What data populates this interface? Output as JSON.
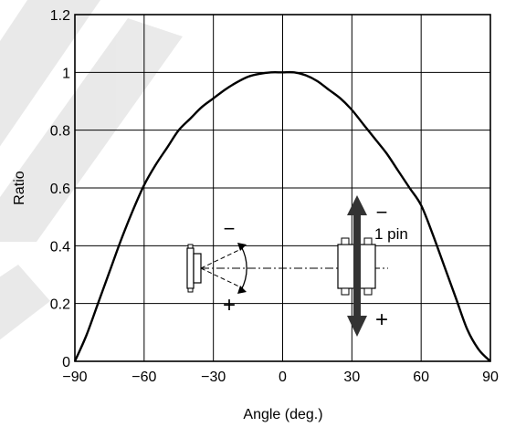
{
  "chart_data": {
    "type": "line",
    "xlabel": "Angle  (deg.)",
    "ylabel": "Ratio",
    "xlim": [
      -90,
      90
    ],
    "ylim": [
      0,
      1.2
    ],
    "x_ticks": [
      "−90",
      "−60",
      "−30",
      "0",
      "30",
      "60",
      "90"
    ],
    "x_tick_values": [
      -90,
      -60,
      -30,
      0,
      30,
      60,
      90
    ],
    "y_ticks": [
      "0",
      "0.2",
      "0.4",
      "0.6",
      "0.8",
      "1",
      "1.2"
    ],
    "y_tick_values": [
      0,
      0.2,
      0.4,
      0.6,
      0.8,
      1,
      1.2
    ],
    "grid": true,
    "series": [
      {
        "x": [
          -90,
          -85,
          -80,
          -75,
          -70,
          -65,
          -60,
          -55,
          -50,
          -45,
          -40,
          -35,
          -30,
          -25,
          -20,
          -15,
          -10,
          -5,
          0,
          5,
          10,
          15,
          20,
          25,
          30,
          35,
          40,
          45,
          50,
          55,
          60,
          65,
          70,
          75,
          80,
          85,
          90
        ],
        "y": [
          0.0,
          0.09,
          0.2,
          0.31,
          0.42,
          0.52,
          0.61,
          0.68,
          0.74,
          0.8,
          0.84,
          0.88,
          0.91,
          0.94,
          0.965,
          0.985,
          0.995,
          1.0,
          1.0,
          1.0,
          0.99,
          0.97,
          0.94,
          0.91,
          0.87,
          0.82,
          0.77,
          0.72,
          0.66,
          0.6,
          0.54,
          0.44,
          0.33,
          0.22,
          0.11,
          0.04,
          0.0
        ],
        "color": "#000000"
      }
    ],
    "annotations": {
      "left_minus": "−",
      "left_plus": "+",
      "right_minus": "−",
      "right_plus": "+",
      "pin_label": "1 pin"
    }
  }
}
